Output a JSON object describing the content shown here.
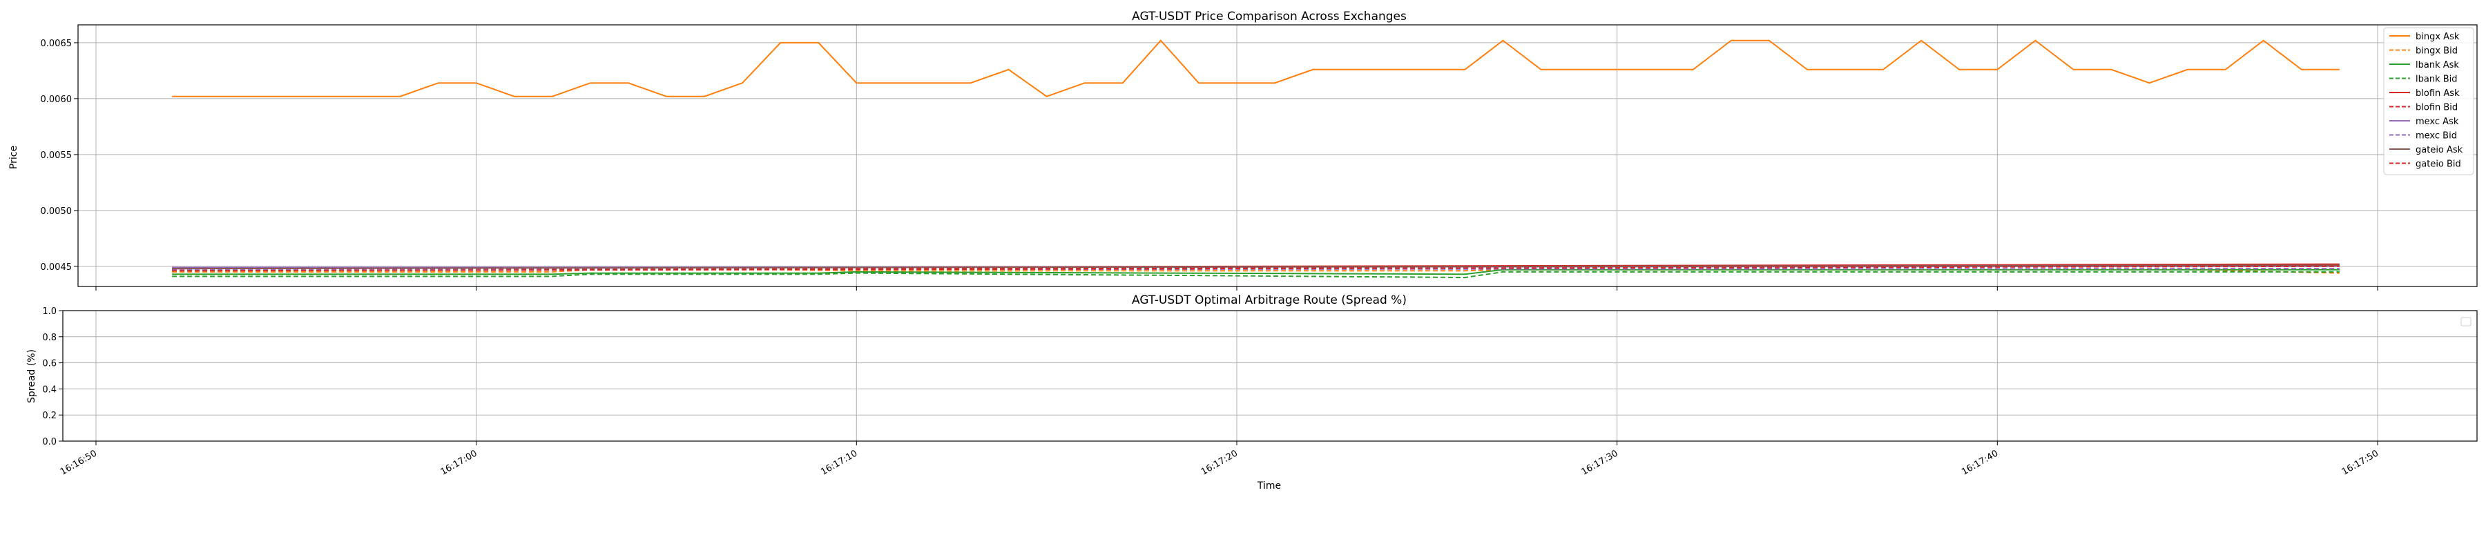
{
  "chart_data": [
    {
      "type": "line",
      "title": "AGT-USDT Price Comparison Across Exchanges",
      "xlabel": "",
      "ylabel": "Price",
      "ylim": [
        0.00432,
        0.00666
      ],
      "yticks": [
        "0.0045",
        "0.0050",
        "0.0055",
        "0.0060",
        "0.0065"
      ],
      "ytick_values": [
        0.0045,
        0.005,
        0.0055,
        0.006,
        0.0065
      ],
      "grid": true,
      "legend_position": "upper right",
      "series": [
        {
          "name": "bingx Ask",
          "color": "#ff7f0e",
          "dash": "solid",
          "points": [
            [
              "16:16:52",
              0.00602
            ],
            [
              "16:16:58",
              0.00602
            ],
            [
              "16:16:59",
              0.00614
            ],
            [
              "16:17:00",
              0.00614
            ],
            [
              "16:17:01",
              0.00602
            ],
            [
              "16:17:02",
              0.00602
            ],
            [
              "16:17:03",
              0.00614
            ],
            [
              "16:17:04",
              0.00614
            ],
            [
              "16:17:05",
              0.00602
            ],
            [
              "16:17:06",
              0.00602
            ],
            [
              "16:17:07",
              0.00614
            ],
            [
              "16:17:08",
              0.0065
            ],
            [
              "16:17:09",
              0.0065
            ],
            [
              "16:17:10",
              0.00614
            ],
            [
              "16:17:13",
              0.00614
            ],
            [
              "16:17:14",
              0.00626
            ],
            [
              "16:17:15",
              0.00602
            ],
            [
              "16:17:16",
              0.00614
            ],
            [
              "16:17:17",
              0.00614
            ],
            [
              "16:17:18",
              0.00652
            ],
            [
              "16:17:19",
              0.00614
            ],
            [
              "16:17:20",
              0.00614
            ],
            [
              "16:17:21",
              0.00614
            ],
            [
              "16:17:22",
              0.00626
            ],
            [
              "16:17:23",
              0.00626
            ],
            [
              "16:17:24",
              0.00626
            ],
            [
              "16:17:26",
              0.00626
            ],
            [
              "16:17:27",
              0.00652
            ],
            [
              "16:17:28",
              0.00626
            ],
            [
              "16:17:29",
              0.00626
            ],
            [
              "16:17:32",
              0.00626
            ],
            [
              "16:17:33",
              0.00652
            ],
            [
              "16:17:34",
              0.00652
            ],
            [
              "16:17:35",
              0.00626
            ],
            [
              "16:17:37",
              0.00626
            ],
            [
              "16:17:38",
              0.00652
            ],
            [
              "16:17:39",
              0.00626
            ],
            [
              "16:17:40",
              0.00626
            ],
            [
              "16:17:41",
              0.00652
            ],
            [
              "16:17:42",
              0.00626
            ],
            [
              "16:17:43",
              0.00626
            ],
            [
              "16:17:44",
              0.00614
            ],
            [
              "16:17:45",
              0.00626
            ],
            [
              "16:17:46",
              0.00626
            ],
            [
              "16:17:47",
              0.00652
            ],
            [
              "16:17:48",
              0.00626
            ],
            [
              "16:17:49",
              0.00626
            ]
          ]
        },
        {
          "name": "bingx Bid",
          "color": "#ff7f0e",
          "dash": "dashed",
          "points": [
            [
              "16:16:52",
              0.00445
            ],
            [
              "16:17:02",
              0.00445
            ],
            [
              "16:17:03",
              0.00447
            ],
            [
              "16:17:08",
              0.00447
            ],
            [
              "16:17:10",
              0.00446
            ],
            [
              "16:17:26",
              0.00446
            ],
            [
              "16:17:27",
              0.00447
            ],
            [
              "16:17:45",
              0.00447
            ],
            [
              "16:17:49",
              0.00444
            ]
          ]
        },
        {
          "name": "lbank Ask",
          "color": "#2ca02c",
          "dash": "solid",
          "points": [
            [
              "16:16:52",
              0.00443
            ],
            [
              "16:17:02",
              0.00443
            ],
            [
              "16:17:03",
              0.00444
            ],
            [
              "16:17:09",
              0.00444
            ],
            [
              "16:17:10",
              0.00445
            ],
            [
              "16:17:26",
              0.00443
            ],
            [
              "16:17:27",
              0.00447
            ],
            [
              "16:17:49",
              0.00447
            ]
          ]
        },
        {
          "name": "lbank Bid",
          "color": "#2ca02c",
          "dash": "dashed",
          "points": [
            [
              "16:16:52",
              0.00441
            ],
            [
              "16:17:02",
              0.00441
            ],
            [
              "16:17:03",
              0.00443
            ],
            [
              "16:17:09",
              0.00443
            ],
            [
              "16:17:10",
              0.00444
            ],
            [
              "16:17:26",
              0.0044
            ],
            [
              "16:17:27",
              0.00445
            ],
            [
              "16:17:49",
              0.00445
            ]
          ]
        },
        {
          "name": "blofin Ask",
          "color": "#d62728",
          "dash": "solid",
          "points": [
            [
              "16:16:52",
              0.00448
            ],
            [
              "16:17:49",
              0.00452
            ]
          ]
        },
        {
          "name": "blofin Bid",
          "color": "#d62728",
          "dash": "dashed",
          "points": [
            [
              "16:16:52",
              0.00447
            ],
            [
              "16:17:49",
              0.00451
            ]
          ]
        },
        {
          "name": "mexc Ask",
          "color": "#9467bd",
          "dash": "solid",
          "points": [
            [
              "16:16:52",
              0.00449
            ],
            [
              "16:17:49",
              0.0045
            ]
          ]
        },
        {
          "name": "mexc Bid",
          "color": "#9467bd",
          "dash": "dashed",
          "points": [
            [
              "16:16:52",
              0.00447
            ],
            [
              "16:17:49",
              0.00448
            ]
          ]
        },
        {
          "name": "gateio Ask",
          "color": "#8c564b",
          "dash": "solid",
          "points": [
            [
              "16:16:52",
              0.00448
            ],
            [
              "16:17:49",
              0.00451
            ]
          ]
        },
        {
          "name": "gateio Bid",
          "color": "#d62728",
          "dash": "dashed",
          "points": [
            [
              "16:16:52",
              0.00446
            ],
            [
              "16:17:49",
              0.0045
            ]
          ]
        }
      ]
    },
    {
      "type": "line",
      "title": "AGT-USDT Optimal Arbitrage Route (Spread %)",
      "xlabel": "Time",
      "ylabel": "Spread (%)",
      "ylim": [
        0.0,
        1.0
      ],
      "yticks": [
        "0.0",
        "0.2",
        "0.4",
        "0.6",
        "0.8",
        "1.0"
      ],
      "ytick_values": [
        0.0,
        0.2,
        0.4,
        0.6,
        0.8,
        1.0
      ],
      "xlim": [
        "16:16:49.5",
        "16:17:52.5"
      ],
      "xticks": [
        "16:16:50",
        "16:17:00",
        "16:17:10",
        "16:17:20",
        "16:17:30",
        "16:17:40",
        "16:17:50"
      ],
      "grid": true,
      "legend_position": "upper right",
      "series": []
    }
  ]
}
